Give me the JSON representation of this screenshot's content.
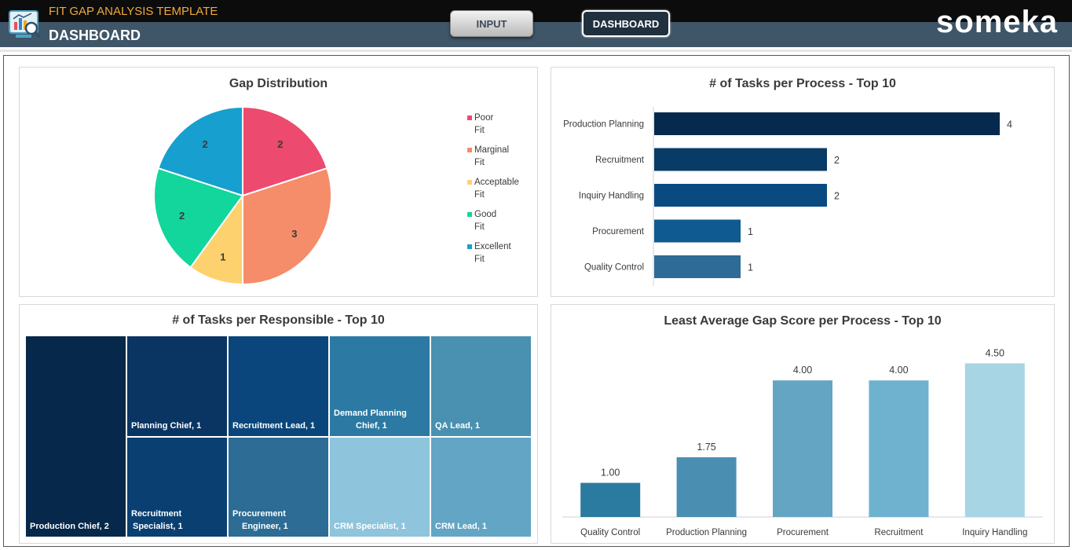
{
  "header": {
    "app_title": "FIT GAP ANALYSIS TEMPLATE",
    "page_name": "DASHBOARD",
    "nav": {
      "input_label": "INPUT",
      "dashboard_label": "DASHBOARD"
    },
    "brand": "someka"
  },
  "panels": {
    "pie_title": "Gap Distribution",
    "process_title": "# of Tasks per Process - Top 10",
    "responsible_title": "# of Tasks per Responsible - Top 10",
    "score_title": "Least Average Gap Score per Process - Top 10"
  },
  "chart_data": [
    {
      "type": "pie",
      "title": "Gap Distribution",
      "categories": [
        "Poor Fit",
        "Marginal Fit",
        "Acceptable Fit",
        "Good Fit",
        "Excellent Fit"
      ],
      "legend": [
        [
          "Poor",
          "Fit"
        ],
        [
          "Marginal",
          "Fit"
        ],
        [
          "Acceptable",
          "Fit"
        ],
        [
          "Good",
          "Fit"
        ],
        [
          "Excellent",
          "Fit"
        ]
      ],
      "values": [
        2,
        3,
        1,
        2,
        2
      ],
      "colors": [
        "#ec4a6e",
        "#f58c6a",
        "#fdd16d",
        "#12d69c",
        "#169fcf"
      ],
      "legend_position": "right"
    },
    {
      "type": "bar",
      "orientation": "horizontal",
      "title": "# of Tasks per Process - Top 10",
      "categories": [
        "Production Planning",
        "Recruitment",
        "Inquiry Handling",
        "Procurement",
        "Quality Control"
      ],
      "values": [
        4,
        2,
        2,
        1,
        1
      ],
      "colors": [
        "#062a4e",
        "#083b66",
        "#0a4a80",
        "#0f5a90",
        "#2e6b97"
      ],
      "xlim": [
        0,
        4.6
      ]
    },
    {
      "type": "treemap",
      "title": "# of Tasks per Responsible - Top 10",
      "items": [
        {
          "label": "Production Chief, 2",
          "value": 2,
          "color": "#06284a"
        },
        {
          "label": "Planning Chief, 1",
          "value": 1,
          "color": "#0a3563"
        },
        {
          "label": "Recruitment Lead, 1",
          "value": 1,
          "color": "#0a467b"
        },
        {
          "label": "Demand Planning Chief, 1",
          "value": 1,
          "color": "#2c7aa3"
        },
        {
          "label": "QA Lead, 1",
          "value": 1,
          "color": "#4a90b0"
        },
        {
          "label": "Recruitment Specialist, 1",
          "value": 1,
          "color": "#0a3f72"
        },
        {
          "label": "Procurement Engineer, 1",
          "value": 1,
          "color": "#2c6c95"
        },
        {
          "label": "CRM Specialist, 1",
          "value": 1,
          "color": "#8ec4dc"
        },
        {
          "label": "CRM Lead, 1",
          "value": 1,
          "color": "#62a5c4"
        }
      ],
      "tile_lines": [
        [
          "Production Chief, 2"
        ],
        [
          "Planning Chief, 1"
        ],
        [
          "Recruitment Lead, 1"
        ],
        [
          "Demand Planning",
          "Chief, 1"
        ],
        [
          "QA Lead, 1"
        ],
        [
          "Recruitment",
          "Specialist, 1"
        ],
        [
          "Procurement",
          "Engineer, 1"
        ],
        [
          "CRM Specialist, 1"
        ],
        [
          "CRM Lead, 1"
        ]
      ]
    },
    {
      "type": "bar",
      "orientation": "vertical",
      "title": "Least Average Gap Score per Process - Top 10",
      "categories": [
        "Quality Control",
        "Production Planning",
        "Procurement",
        "Recruitment",
        "Inquiry Handling"
      ],
      "values": [
        1.0,
        1.75,
        4.0,
        4.0,
        4.5
      ],
      "value_labels": [
        "1.00",
        "1.75",
        "4.00",
        "4.00",
        "4.50"
      ],
      "colors": [
        "#2b7aa0",
        "#4a8fb2",
        "#64a5c4",
        "#6fb2cf",
        "#a8d5e3"
      ],
      "ylim": [
        0,
        5.2
      ]
    }
  ]
}
